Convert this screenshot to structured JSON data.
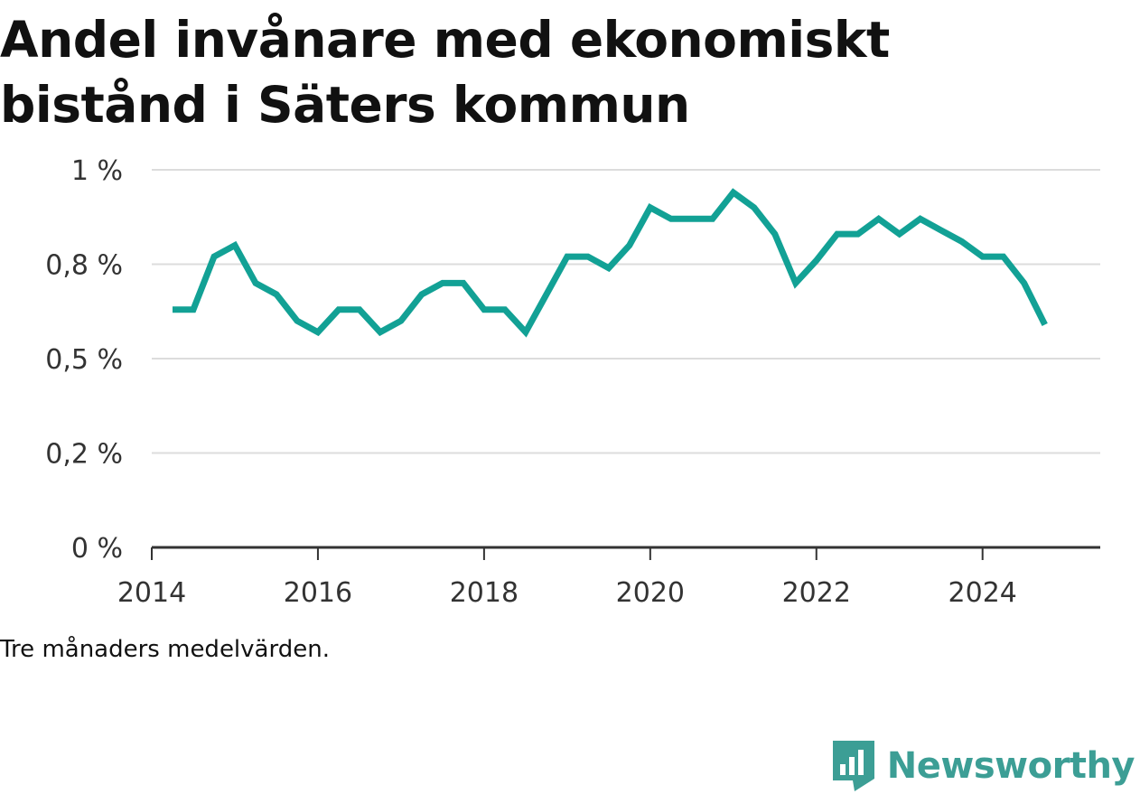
{
  "title": "Andel invånare med ekonomiskt bistånd i Säters kommun",
  "note": "Tre månaders medelvärden.",
  "brand": {
    "name": "Newsworthy",
    "icon": "newsworthy-logo-icon",
    "color": "#3c9e95"
  },
  "chart_data": {
    "type": "line",
    "title": "Andel invånare med ekonomiskt bistånd i Säters kommun",
    "xlabel": "",
    "ylabel": "",
    "x_tick_labels": [
      "2014",
      "2016",
      "2018",
      "2020",
      "2022",
      "2024"
    ],
    "y_tick_labels": [
      "0 %",
      "0,2 %",
      "0,5 %",
      "0,8 %",
      "1 %"
    ],
    "ylim": [
      0,
      1.0
    ],
    "xlim": [
      "2014-01",
      "2025-06"
    ],
    "grid": true,
    "legend": "none",
    "line_color": "#12a195",
    "series": [
      {
        "x": [
          "2014-04",
          "2014-07",
          "2014-10",
          "2015-01",
          "2015-04",
          "2015-07",
          "2015-10",
          "2016-01",
          "2016-04",
          "2016-07",
          "2016-10",
          "2017-01",
          "2017-04",
          "2017-07",
          "2017-10",
          "2018-01",
          "2018-04",
          "2018-07",
          "2018-10",
          "2019-01",
          "2019-04",
          "2019-07",
          "2019-10",
          "2020-01",
          "2020-04",
          "2020-07",
          "2020-10",
          "2021-01",
          "2021-04",
          "2021-07",
          "2021-10",
          "2022-01",
          "2022-04",
          "2022-07",
          "2022-10",
          "2023-01",
          "2023-04",
          "2023-07",
          "2023-10",
          "2024-01",
          "2024-04",
          "2024-07",
          "2024-10"
        ],
        "values": [
          0.63,
          0.63,
          0.77,
          0.8,
          0.7,
          0.67,
          0.6,
          0.57,
          0.63,
          0.63,
          0.57,
          0.6,
          0.67,
          0.7,
          0.7,
          0.63,
          0.63,
          0.57,
          0.67,
          0.77,
          0.77,
          0.74,
          0.8,
          0.9,
          0.87,
          0.87,
          0.87,
          0.94,
          0.9,
          0.83,
          0.7,
          0.76,
          0.83,
          0.83,
          0.87,
          0.83,
          0.87,
          0.84,
          0.81,
          0.77,
          0.77,
          0.7,
          0.59
        ]
      }
    ]
  }
}
